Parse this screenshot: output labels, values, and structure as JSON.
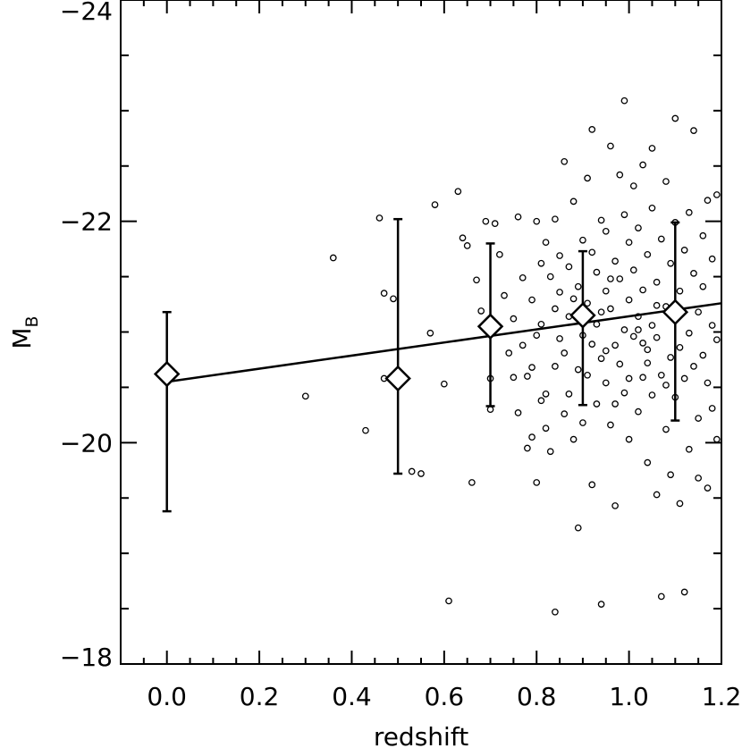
{
  "chart_data": {
    "type": "scatter",
    "title": "",
    "xlabel": "redshift",
    "ylabel_main": "M",
    "ylabel_sub": "B",
    "xlim": [
      -0.1,
      1.2
    ],
    "ylim": [
      -18,
      -24
    ],
    "x_ticks": [
      0.0,
      0.2,
      0.4,
      0.6,
      0.8,
      1.0,
      1.2
    ],
    "x_tick_labels": [
      "0.0",
      "0.2",
      "0.4",
      "0.6",
      "0.8",
      "1.0",
      "1.2"
    ],
    "y_ticks": [
      -18,
      -20,
      -22,
      -24
    ],
    "y_tick_labels": [
      "−18",
      "−20",
      "−22",
      "−24"
    ],
    "grid": false,
    "series": [
      {
        "marker": "circle",
        "points": [
          [
            0.3,
            -20.42
          ],
          [
            0.36,
            -21.67
          ],
          [
            0.43,
            -20.11
          ],
          [
            0.46,
            -22.03
          ],
          [
            0.47,
            -20.58
          ],
          [
            0.47,
            -21.35
          ],
          [
            0.49,
            -21.3
          ],
          [
            0.53,
            -19.74
          ],
          [
            0.55,
            -19.72
          ],
          [
            0.57,
            -20.99
          ],
          [
            0.58,
            -22.15
          ],
          [
            0.6,
            -20.53
          ],
          [
            0.61,
            -18.57
          ],
          [
            0.63,
            -22.27
          ],
          [
            0.64,
            -21.85
          ],
          [
            0.65,
            -21.78
          ],
          [
            0.66,
            -19.64
          ],
          [
            0.67,
            -21.47
          ],
          [
            0.68,
            -21.19
          ],
          [
            0.69,
            -22.0
          ],
          [
            0.7,
            -20.3
          ],
          [
            0.7,
            -20.58
          ],
          [
            0.71,
            -21.98
          ],
          [
            0.72,
            -21.7
          ],
          [
            0.73,
            -21.33
          ],
          [
            0.74,
            -20.81
          ],
          [
            0.75,
            -21.12
          ],
          [
            0.75,
            -20.59
          ],
          [
            0.76,
            -22.04
          ],
          [
            0.76,
            -20.27
          ],
          [
            0.77,
            -21.49
          ],
          [
            0.77,
            -20.88
          ],
          [
            0.78,
            -20.6
          ],
          [
            0.78,
            -19.95
          ],
          [
            0.79,
            -21.29
          ],
          [
            0.79,
            -20.68
          ],
          [
            0.79,
            -20.05
          ],
          [
            0.8,
            -20.97
          ],
          [
            0.8,
            -19.64
          ],
          [
            0.8,
            -22.0
          ],
          [
            0.81,
            -21.62
          ],
          [
            0.81,
            -21.07
          ],
          [
            0.81,
            -20.38
          ],
          [
            0.82,
            -20.44
          ],
          [
            0.82,
            -21.81
          ],
          [
            0.82,
            -20.13
          ],
          [
            0.83,
            -21.5
          ],
          [
            0.83,
            -19.92
          ],
          [
            0.84,
            -21.21
          ],
          [
            0.84,
            -22.02
          ],
          [
            0.84,
            -20.69
          ],
          [
            0.84,
            -18.47
          ],
          [
            0.85,
            -21.36
          ],
          [
            0.85,
            -20.94
          ],
          [
            0.85,
            -21.69
          ],
          [
            0.86,
            -20.26
          ],
          [
            0.86,
            -22.54
          ],
          [
            0.86,
            -20.81
          ],
          [
            0.87,
            -21.14
          ],
          [
            0.87,
            -20.44
          ],
          [
            0.87,
            -21.59
          ],
          [
            0.88,
            -20.03
          ],
          [
            0.88,
            -22.18
          ],
          [
            0.88,
            -21.3
          ],
          [
            0.89,
            -19.23
          ],
          [
            0.89,
            -20.66
          ],
          [
            0.89,
            -21.41
          ],
          [
            0.9,
            -20.97
          ],
          [
            0.9,
            -21.83
          ],
          [
            0.9,
            -20.18
          ],
          [
            0.91,
            -22.39
          ],
          [
            0.91,
            -20.61
          ],
          [
            0.91,
            -21.26
          ],
          [
            0.92,
            -20.89
          ],
          [
            0.92,
            -21.72
          ],
          [
            0.92,
            -19.62
          ],
          [
            0.93,
            -21.07
          ],
          [
            0.93,
            -21.54
          ],
          [
            0.93,
            -20.35
          ],
          [
            0.94,
            -22.01
          ],
          [
            0.94,
            -20.76
          ],
          [
            0.94,
            -18.54
          ],
          [
            0.95,
            -21.91
          ],
          [
            0.95,
            -20.54
          ],
          [
            0.95,
            -21.37
          ],
          [
            0.96,
            -20.16
          ],
          [
            0.96,
            -22.68
          ],
          [
            0.96,
            -21.21
          ],
          [
            0.97,
            -20.88
          ],
          [
            0.97,
            -21.64
          ],
          [
            0.97,
            -19.43
          ],
          [
            0.98,
            -22.42
          ],
          [
            0.98,
            -20.71
          ],
          [
            0.98,
            -21.48
          ],
          [
            0.99,
            -21.02
          ],
          [
            0.99,
            -20.45
          ],
          [
            0.99,
            -22.06
          ],
          [
            1.0,
            -21.29
          ],
          [
            1.0,
            -20.03
          ],
          [
            1.0,
            -21.81
          ],
          [
            1.01,
            -20.96
          ],
          [
            1.01,
            -22.32
          ],
          [
            1.01,
            -21.56
          ],
          [
            1.02,
            -20.28
          ],
          [
            1.02,
            -21.14
          ],
          [
            1.02,
            -21.94
          ],
          [
            1.03,
            -20.59
          ],
          [
            1.03,
            -22.51
          ],
          [
            1.03,
            -21.38
          ],
          [
            1.04,
            -19.82
          ],
          [
            1.04,
            -20.84
          ],
          [
            1.04,
            -21.7
          ],
          [
            1.05,
            -21.06
          ],
          [
            1.05,
            -22.12
          ],
          [
            1.05,
            -20.43
          ],
          [
            1.06,
            -21.45
          ],
          [
            1.06,
            -19.53
          ],
          [
            1.06,
            -20.95
          ],
          [
            1.07,
            -21.84
          ],
          [
            1.07,
            -20.61
          ],
          [
            1.07,
            -18.61
          ],
          [
            1.08,
            -22.36
          ],
          [
            1.08,
            -21.23
          ],
          [
            1.08,
            -20.12
          ],
          [
            1.09,
            -21.62
          ],
          [
            1.09,
            -20.77
          ],
          [
            1.09,
            -19.71
          ],
          [
            1.1,
            -21.99
          ],
          [
            1.1,
            -20.41
          ],
          [
            1.1,
            -22.93
          ],
          [
            1.11,
            -21.37
          ],
          [
            1.11,
            -20.86
          ],
          [
            1.11,
            -19.45
          ],
          [
            1.12,
            -21.74
          ],
          [
            1.12,
            -20.58
          ],
          [
            1.12,
            -18.65
          ],
          [
            1.13,
            -22.08
          ],
          [
            1.13,
            -20.99
          ],
          [
            1.13,
            -19.94
          ],
          [
            1.14,
            -21.53
          ],
          [
            1.14,
            -20.69
          ],
          [
            1.14,
            -22.82
          ],
          [
            1.15,
            -21.18
          ],
          [
            1.15,
            -20.22
          ],
          [
            1.15,
            -19.68
          ],
          [
            1.16,
            -21.87
          ],
          [
            1.16,
            -20.79
          ],
          [
            1.16,
            -21.41
          ],
          [
            1.17,
            -20.54
          ],
          [
            1.17,
            -22.19
          ],
          [
            1.17,
            -19.59
          ],
          [
            1.18,
            -21.06
          ],
          [
            1.18,
            -20.31
          ],
          [
            1.18,
            -21.66
          ],
          [
            1.19,
            -20.93
          ],
          [
            1.19,
            -22.24
          ],
          [
            1.19,
            -20.03
          ],
          [
            0.92,
            -22.83
          ],
          [
            0.99,
            -23.09
          ],
          [
            1.05,
            -22.66
          ],
          [
            0.94,
            -21.18
          ],
          [
            0.95,
            -20.83
          ],
          [
            1.0,
            -20.58
          ],
          [
            1.02,
            -21.02
          ],
          [
            1.04,
            -20.72
          ],
          [
            0.96,
            -21.48
          ],
          [
            0.97,
            -20.35
          ],
          [
            1.03,
            -20.9
          ],
          [
            1.06,
            -21.24
          ],
          [
            1.08,
            -20.52
          ]
        ]
      }
    ],
    "binned_means": {
      "marker": "diamond",
      "x": [
        0.0,
        0.5,
        0.7,
        0.9,
        1.1
      ],
      "y": [
        -20.62,
        -20.58,
        -21.05,
        -21.15,
        -21.18
      ],
      "y_err_low": [
        -19.38,
        -19.72,
        -20.33,
        -20.34,
        -20.2
      ],
      "y_err_high": [
        -21.18,
        -22.02,
        -21.8,
        -21.73,
        -21.99
      ]
    },
    "fit_line": {
      "x": [
        0.0,
        1.2
      ],
      "y": [
        -20.55,
        -21.26
      ]
    }
  }
}
